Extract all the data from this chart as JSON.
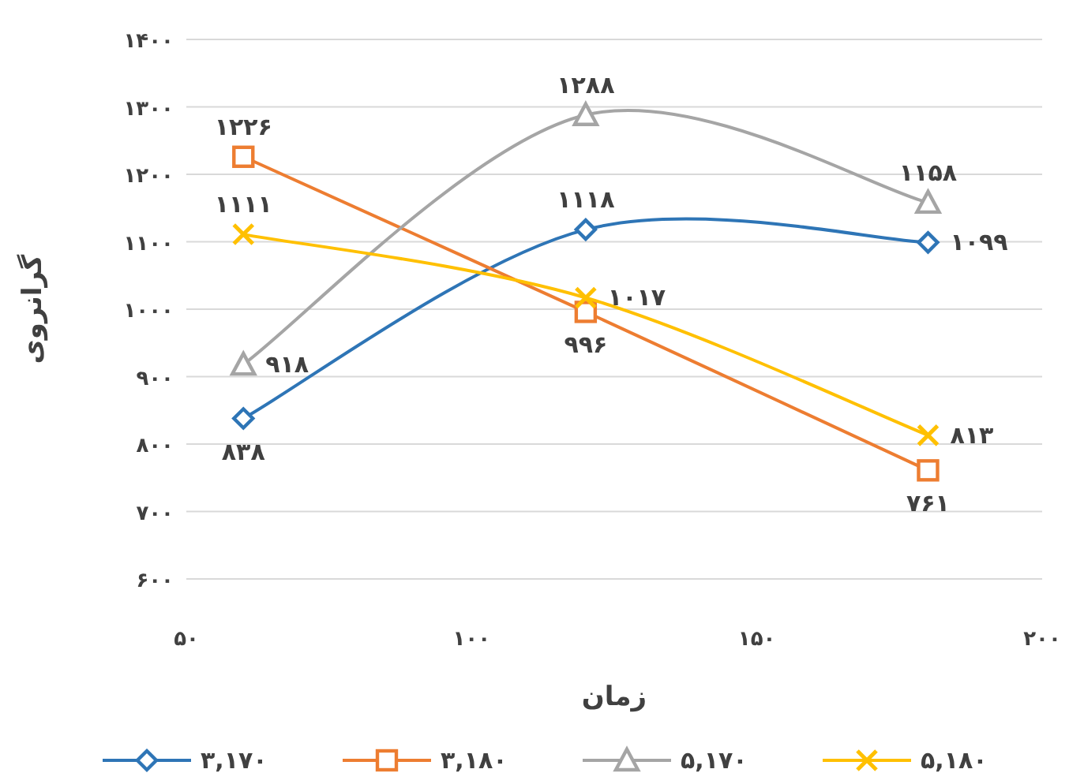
{
  "chart_data": {
    "type": "line",
    "xlabel": "زمان",
    "ylabel": "گرانروی",
    "x": [
      60,
      120,
      180
    ],
    "xlim": [
      50,
      200
    ],
    "xticks": [
      {
        "value": 50,
        "label": "۵۰"
      },
      {
        "value": 100,
        "label": "۱۰۰"
      },
      {
        "value": 150,
        "label": "۱۵۰"
      },
      {
        "value": 200,
        "label": "۲۰۰"
      }
    ],
    "ylim": [
      600,
      1400
    ],
    "yticks": [
      {
        "value": 600,
        "label": "۶۰۰"
      },
      {
        "value": 700,
        "label": "۷۰۰"
      },
      {
        "value": 800,
        "label": "۸۰۰"
      },
      {
        "value": 900,
        "label": "۹۰۰"
      },
      {
        "value": 1000,
        "label": "۱۰۰۰"
      },
      {
        "value": 1100,
        "label": "۱۱۰۰"
      },
      {
        "value": 1200,
        "label": "۱۲۰۰"
      },
      {
        "value": 1300,
        "label": "۱۳۰۰"
      },
      {
        "value": 1400,
        "label": "۱۴۰۰"
      }
    ],
    "grid": "y",
    "legend": "bottom",
    "line_style": "solid",
    "series": [
      {
        "name": "۳,۱۷۰",
        "color": "#2e75b6",
        "marker": "diamond",
        "values": [
          838,
          1118,
          1099
        ],
        "value_labels": [
          "۸۳۸",
          "۱۱۱۸",
          "۱۰۹۹"
        ]
      },
      {
        "name": "۳,۱۸۰",
        "color": "#ed7d31",
        "marker": "square",
        "values": [
          1226,
          996,
          761
        ],
        "value_labels": [
          "۱۲۲۶",
          "۹۹۶",
          "۷۶۱"
        ]
      },
      {
        "name": "۵,۱۷۰",
        "color": "#a5a5a5",
        "marker": "triangle",
        "values": [
          918,
          1288,
          1158
        ],
        "value_labels": [
          "۹۱۸",
          "۱۲۸۸",
          "۱۱۵۸"
        ]
      },
      {
        "name": "۵,۱۸۰",
        "color": "#ffc000",
        "marker": "cross",
        "values": [
          1111,
          1017,
          813
        ],
        "value_labels": [
          "۱۱۱۱",
          "۱۰۱۷",
          "۸۱۳"
        ]
      }
    ]
  }
}
